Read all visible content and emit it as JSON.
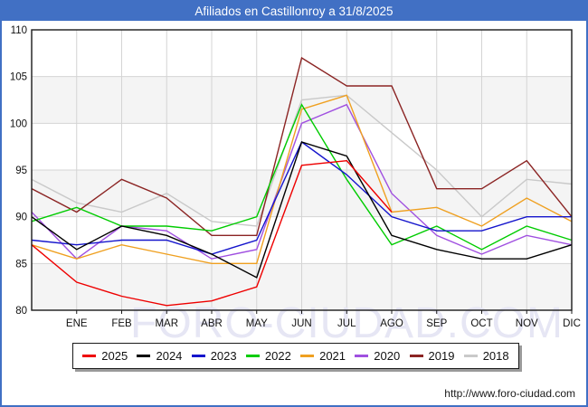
{
  "title": "Afiliados en Castillonroy a 31/8/2025",
  "watermark": "FORO-CIUDAD.COM",
  "footer": {
    "url": "http://www.foro-ciudad.com"
  },
  "colors": {
    "frame_blue": "#4170c4",
    "plot_border": "#1a1a1a",
    "gridline": "#d4d4d4",
    "band_fill": "#f4f4f4",
    "watermark_fill": "#e6e6f4"
  },
  "chart_data": {
    "type": "line",
    "title": "Afiliados en Castillonroy a 31/8/2025",
    "xlabel": "",
    "ylabel": "",
    "ylim": [
      80,
      110
    ],
    "ytick_step": 5,
    "grid": true,
    "legend_position": "bottom",
    "x_labels": [
      "",
      "ENE",
      "FEB",
      "MAR",
      "ABR",
      "MAY",
      "JUN",
      "JUL",
      "AGO",
      "SEP",
      "OCT",
      "NOV",
      "DIC"
    ],
    "series": [
      {
        "name": "2025",
        "color": "#ee0000",
        "values": [
          87,
          83,
          81.5,
          80.5,
          81,
          82.5,
          95.5,
          96,
          90.5
        ]
      },
      {
        "name": "2024",
        "color": "#000000",
        "values": [
          90,
          86.5,
          89,
          88,
          86,
          83.5,
          98,
          96.5,
          88,
          86.5,
          85.5,
          85.5,
          87
        ]
      },
      {
        "name": "2023",
        "color": "#1414cc",
        "values": [
          87.5,
          87,
          87.5,
          87.5,
          86,
          87.5,
          98,
          94.5,
          90,
          88.5,
          88.5,
          90,
          90
        ]
      },
      {
        "name": "2022",
        "color": "#00cc00",
        "values": [
          89.5,
          91,
          89,
          89,
          88.5,
          90,
          102,
          94,
          87,
          89,
          86.5,
          89,
          87.5
        ]
      },
      {
        "name": "2021",
        "color": "#efa020",
        "values": [
          87,
          85.5,
          87,
          86,
          85,
          85,
          101.5,
          103,
          90.5,
          91,
          89,
          92,
          89.5
        ]
      },
      {
        "name": "2020",
        "color": "#a050e0",
        "values": [
          90.5,
          85.5,
          89,
          88.5,
          85.5,
          86.5,
          100,
          102,
          92.5,
          88,
          86,
          88,
          87
        ]
      },
      {
        "name": "2019",
        "color": "#8b2423",
        "values": [
          93,
          90.5,
          94,
          92,
          88,
          88,
          107,
          104,
          104,
          93,
          93,
          96,
          90
        ]
      },
      {
        "name": "2018",
        "color": "#c9c9c9",
        "values": [
          94,
          91.5,
          90.5,
          92.5,
          89.5,
          89,
          102.5,
          103,
          99,
          95,
          90,
          94,
          93.5
        ]
      }
    ]
  }
}
